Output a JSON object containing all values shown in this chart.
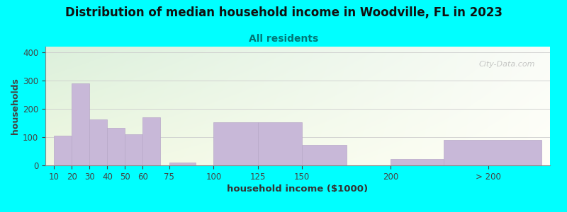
{
  "title": "Distribution of median household income in Woodville, FL in 2023",
  "subtitle": "All residents",
  "xlabel": "household income ($1000)",
  "ylabel": "households",
  "background_color": "#00FFFF",
  "bar_color": "#c8b8d8",
  "bar_edge_color": "#b8a8c8",
  "title_fontsize": 12,
  "subtitle_fontsize": 10,
  "xlabel_fontsize": 9.5,
  "ylabel_fontsize": 9,
  "tick_fontsize": 8.5,
  "categories": [
    "10",
    "20",
    "30",
    "40",
    "50",
    "60",
    "75",
    "100",
    "125",
    "150",
    "200",
    "> 200"
  ],
  "bar_lefts": [
    10,
    20,
    30,
    40,
    50,
    60,
    75,
    100,
    125,
    150,
    200,
    230
  ],
  "bar_widths": [
    10,
    10,
    10,
    10,
    10,
    10,
    15,
    25,
    25,
    25,
    30,
    55
  ],
  "tick_positions": [
    10,
    20,
    30,
    40,
    50,
    60,
    75,
    100,
    125,
    150,
    200,
    255
  ],
  "values": [
    105,
    290,
    163,
    133,
    110,
    170,
    10,
    153,
    152,
    72,
    22,
    90
  ],
  "xlim": [
    5,
    290
  ],
  "ylim": [
    0,
    420
  ],
  "yticks": [
    0,
    100,
    200,
    300,
    400
  ],
  "grid_color": "#cccccc",
  "subtitle_color": "#007777",
  "title_color": "#111111",
  "watermark": "City-Data.com"
}
